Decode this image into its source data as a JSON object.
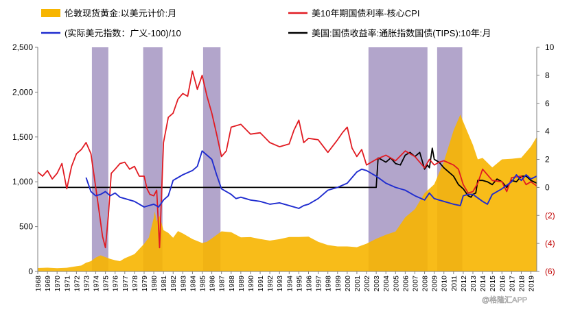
{
  "chart_data": {
    "type": "line",
    "colors": {
      "gold": "#f7b500",
      "cpi": "#e11b22",
      "usd": "#1f2ccf",
      "tips": "#000000",
      "shade": "#9c8cbc",
      "neg_tick": "#c00000"
    },
    "legend": [
      {
        "label": "伦敦现货黄金:以美元计价:月",
        "kind": "area",
        "color": "#f7b500"
      },
      {
        "label": "美10年期国债利率-核心CPI",
        "kind": "line",
        "color": "#e11b22"
      },
      {
        "label": "(实际美元指数：广义-100)/10",
        "kind": "line",
        "color": "#1f2ccf"
      },
      {
        "label": "美国:国债收益率:通胀指数国债(TIPS):10年:月",
        "kind": "line",
        "color": "#000000"
      }
    ],
    "x_tick_labels": [
      "1968",
      "1969",
      "1970",
      "1971",
      "1972",
      "1973",
      "1974",
      "1975",
      "1976",
      "1977",
      "1978",
      "1979",
      "1980",
      "1981",
      "1982",
      "1983",
      "1984",
      "1985",
      "1986",
      "1987",
      "1988",
      "1989",
      "1990",
      "1991",
      "1992",
      "1993",
      "1994",
      "1995",
      "1996",
      "1997",
      "1998",
      "1999",
      "2000",
      "2001",
      "2002",
      "2003",
      "2004",
      "2005",
      "2006",
      "2007",
      "2008",
      "2009",
      "2010",
      "2011",
      "2012",
      "2013",
      "2014",
      "2015",
      "2016",
      "2017",
      "2018",
      "2019"
    ],
    "xlim": [
      1968,
      2019.6
    ],
    "y_left": {
      "lim": [
        0,
        2500
      ],
      "ticks": [
        0,
        500,
        1000,
        1500,
        2000,
        2500
      ],
      "tick_labels": [
        "0",
        "500",
        "1,000",
        "1,500",
        "2,000",
        "2,500"
      ]
    },
    "y_right": {
      "lim": [
        -6,
        10
      ],
      "ticks": [
        10,
        8,
        6,
        4,
        2,
        0,
        -2,
        -4,
        -6
      ],
      "tick_labels": [
        "10",
        "8",
        "6",
        "4",
        "2",
        "0",
        "(2)",
        "(4)",
        "(6)"
      ]
    },
    "shaded_periods": [
      [
        1973.6,
        1975.3
      ],
      [
        1978.9,
        1980.9
      ],
      [
        1985.1,
        1986.9
      ],
      [
        2002.2,
        2008.3
      ],
      [
        2009.3,
        2011.9
      ]
    ],
    "series": [
      {
        "name": "伦敦现货黄金:以美元计价:月",
        "axis": "left",
        "kind": "area",
        "x": [
          1968,
          1969,
          1970,
          1971,
          1972,
          1972.5,
          1973,
          1973.5,
          1974,
          1974.5,
          1975,
          1975.5,
          1976,
          1976.5,
          1977,
          1978,
          1979,
          1979.5,
          1980,
          1980.1,
          1980.3,
          1980.6,
          1981,
          1981.5,
          1982,
          1982.5,
          1983,
          1984,
          1985,
          1985.5,
          1986,
          1987,
          1988,
          1989,
          1990,
          1991,
          1992,
          1993,
          1994,
          1995,
          1996,
          1997,
          1998,
          1999,
          2000,
          2001,
          2002,
          2003,
          2004,
          2005,
          2006,
          2007,
          2008,
          2009,
          2010,
          2011,
          2011.7,
          2012,
          2013,
          2013.5,
          2014,
          2015,
          2016,
          2017,
          2018,
          2019,
          2019.6
        ],
        "y": [
          38,
          42,
          36,
          41,
          58,
          66,
          97,
          115,
          155,
          180,
          160,
          140,
          125,
          115,
          147,
          193,
          307,
          380,
          600,
          670,
          560,
          620,
          460,
          430,
          375,
          450,
          424,
          361,
          317,
          330,
          368,
          447,
          437,
          381,
          383,
          362,
          344,
          360,
          384,
          384,
          388,
          331,
          294,
          279,
          279,
          271,
          310,
          364,
          409,
          445,
          604,
          695,
          872,
          972,
          1225,
          1572,
          1750,
          1669,
          1411,
          1250,
          1266,
          1160,
          1250,
          1257,
          1268,
          1393,
          1500
        ]
      },
      {
        "name": "美10年期国债利率-核心CPI",
        "axis": "right",
        "kind": "line",
        "x": [
          1968,
          1968.5,
          1969,
          1969.5,
          1970,
          1970.5,
          1971,
          1971.5,
          1972,
          1972.5,
          1973,
          1973.5,
          1974,
          1974.3,
          1974.7,
          1975,
          1975.3,
          1975.6,
          1976,
          1976.5,
          1977,
          1977.5,
          1978,
          1978.5,
          1979,
          1979.3,
          1979.6,
          1980,
          1980.3,
          1980.6,
          1981,
          1981.5,
          1982,
          1982.5,
          1983,
          1983.5,
          1984,
          1984.5,
          1985,
          1985.5,
          1986,
          1986.5,
          1987,
          1987.5,
          1988,
          1989,
          1990,
          1991,
          1992,
          1993,
          1994,
          1994.5,
          1995,
          1995.5,
          1996,
          1997,
          1998,
          1999,
          1999.5,
          2000,
          2000.5,
          2001,
          2001.5,
          2002,
          2003,
          2004,
          2005,
          2006,
          2007,
          2008,
          2008.5,
          2009,
          2009.5,
          2010,
          2011,
          2011.5,
          2012,
          2012.5,
          2013,
          2013.5,
          2014,
          2015,
          2016,
          2016.5,
          2017,
          2018,
          2018.5,
          2019,
          2019.6
        ],
        "y": [
          1.1,
          0.8,
          1.2,
          0.6,
          1.0,
          1.7,
          -0.1,
          1.5,
          2.4,
          2.7,
          3.2,
          2.4,
          0.0,
          -1.5,
          -3.5,
          -4.3,
          -2.0,
          1.0,
          1.3,
          1.7,
          1.8,
          1.3,
          1.5,
          0.8,
          0.8,
          -0.1,
          -0.5,
          -0.6,
          -0.2,
          -4.3,
          3.2,
          5.0,
          5.3,
          6.3,
          6.7,
          6.5,
          8.3,
          7.0,
          8.0,
          6.5,
          5.3,
          3.8,
          2.2,
          2.6,
          4.3,
          4.5,
          3.8,
          3.9,
          3.2,
          2.9,
          3.1,
          4.1,
          4.8,
          3.2,
          3.5,
          3.4,
          2.5,
          3.4,
          3.9,
          4.3,
          2.8,
          2.2,
          2.7,
          1.6,
          2.0,
          2.3,
          1.9,
          2.6,
          2.2,
          1.4,
          2.0,
          1.6,
          1.8,
          1.9,
          1.6,
          1.3,
          0.2,
          -0.4,
          -0.3,
          0.3,
          1.3,
          0.5,
          0.4,
          -0.3,
          0.7,
          0.8,
          0.2,
          0.4,
          0.1
        ]
      },
      {
        "name": "(实际美元指数：广义-100)/10",
        "axis": "right",
        "kind": "line",
        "x": [
          1973,
          1973.5,
          1974,
          1974.5,
          1975,
          1975.5,
          1976,
          1976.5,
          1977,
          1978,
          1979,
          1979.5,
          1980,
          1980.5,
          1981,
          1981.5,
          1982,
          1983,
          1984,
          1984.5,
          1985,
          1985.5,
          1986,
          1986.5,
          1987,
          1988,
          1988.5,
          1989,
          1990,
          1991,
          1992,
          1993,
          1994,
          1995,
          1995.5,
          1996,
          1997,
          1998,
          1999,
          2000,
          2001,
          2001.5,
          2002,
          2002.5,
          2003,
          2004,
          2005,
          2006,
          2007,
          2008,
          2008.5,
          2009,
          2009.5,
          2010,
          2011,
          2011.7,
          2012,
          2012.5,
          2013,
          2014,
          2014.5,
          2015,
          2016,
          2017,
          2017.5,
          2018,
          2018.5,
          2019,
          2019.6
        ],
        "y": [
          0.7,
          -0.3,
          -0.6,
          -0.5,
          -0.3,
          -0.6,
          -0.4,
          -0.7,
          -0.8,
          -1.0,
          -1.4,
          -1.3,
          -1.2,
          -1.4,
          -0.9,
          -0.6,
          0.5,
          0.9,
          1.2,
          1.5,
          2.6,
          2.3,
          2.0,
          0.9,
          -0.1,
          -0.5,
          -0.8,
          -0.7,
          -0.9,
          -1.0,
          -1.2,
          -1.1,
          -1.3,
          -1.5,
          -1.3,
          -1.2,
          -0.8,
          -0.2,
          0.0,
          0.3,
          1.1,
          1.3,
          1.2,
          1.0,
          0.8,
          0.3,
          0.0,
          -0.2,
          -0.6,
          -0.9,
          -0.4,
          -0.8,
          -0.9,
          -1.0,
          -1.2,
          -1.3,
          -0.6,
          -0.5,
          -0.5,
          -1.0,
          -1.2,
          -0.5,
          -0.1,
          0.4,
          0.9,
          0.5,
          0.9,
          0.6,
          0.8
        ]
      },
      {
        "name": "美国:国债收益率:通胀指数国债(TIPS):10年:月",
        "axis": "right",
        "kind": "line",
        "x": [
          1968,
          2003,
          2003.2,
          2003.5,
          2004,
          2004.5,
          2005,
          2005.5,
          2006,
          2006.5,
          2007,
          2007.5,
          2008,
          2008.3,
          2008.5,
          2008.8,
          2009,
          2009.5,
          2010,
          2010.5,
          2011,
          2011.5,
          2012,
          2012.5,
          2012.8,
          2013,
          2013.3,
          2013.5,
          2014,
          2014.5,
          2015,
          2015.5,
          2016,
          2016.5,
          2017,
          2017.5,
          2018,
          2018.5,
          2019,
          2019.6
        ],
        "y": [
          0,
          0,
          2.1,
          2.0,
          1.8,
          2.1,
          1.7,
          1.6,
          2.3,
          2.5,
          2.2,
          2.5,
          1.3,
          1.6,
          1.4,
          2.8,
          2.0,
          1.8,
          1.4,
          1.1,
          0.8,
          0.2,
          -0.1,
          -0.6,
          -0.7,
          -0.5,
          -0.4,
          0.5,
          0.5,
          0.4,
          0.2,
          0.6,
          0.4,
          0.0,
          0.5,
          0.4,
          0.8,
          0.8,
          0.5,
          0.3
        ]
      }
    ]
  },
  "watermark": "@格隆汇APP"
}
